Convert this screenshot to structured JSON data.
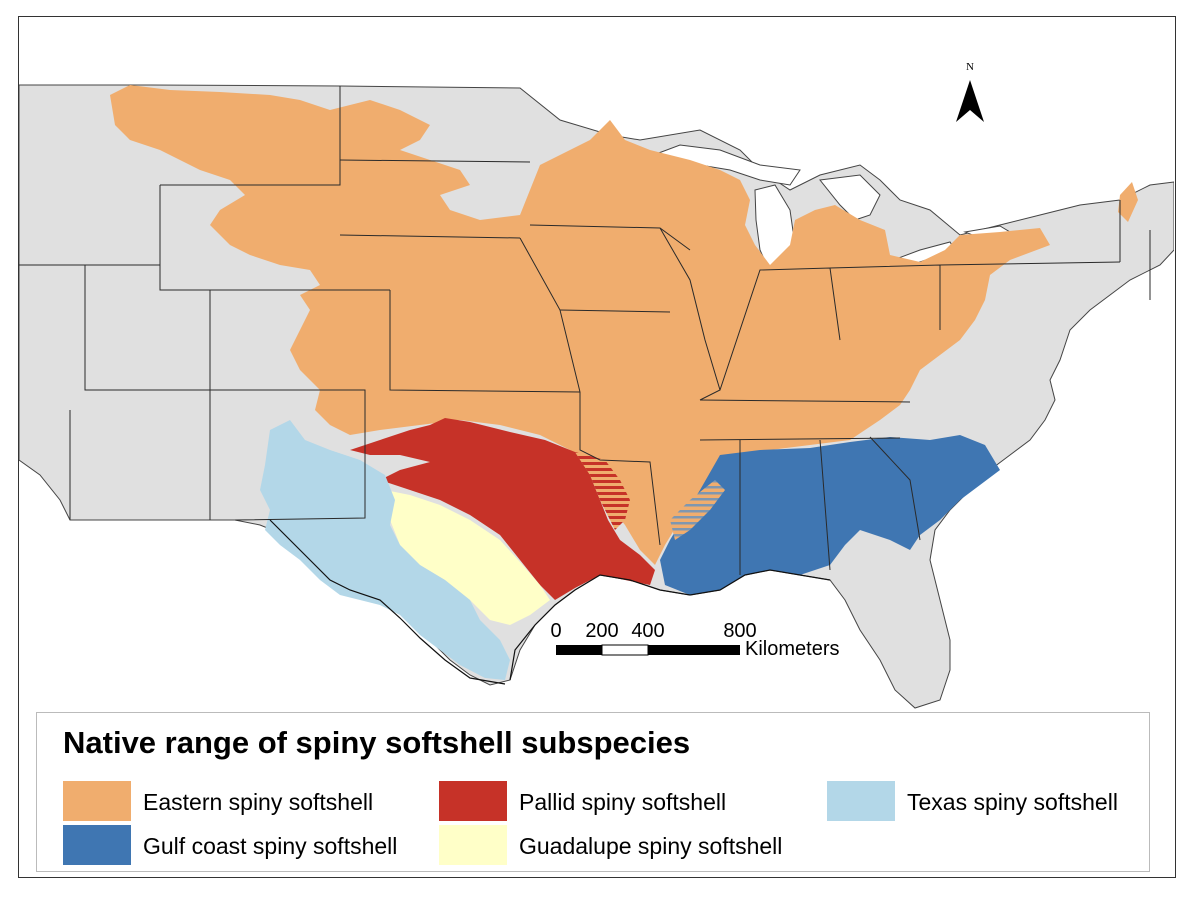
{
  "map": {
    "north_label": "N",
    "scale_bar": {
      "ticks": [
        "0",
        "200",
        "400",
        "800"
      ],
      "unit": "Kilometers"
    }
  },
  "legend": {
    "title": "Native range of spiny softshell subspecies",
    "items": [
      {
        "label": "Eastern spiny softshell",
        "color": "#f0ad6e"
      },
      {
        "label": "Pallid spiny softshell",
        "color": "#c63228"
      },
      {
        "label": "Texas spiny softshell",
        "color": "#b3d7e8"
      },
      {
        "label": "Gulf coast spiny softshell",
        "color": "#3f76b2"
      },
      {
        "label": "Guadalupe spiny softshell",
        "color": "#ffffc8"
      }
    ]
  },
  "colors": {
    "land": "#e0e0e0",
    "water": "#ffffff",
    "border": "#222222"
  }
}
